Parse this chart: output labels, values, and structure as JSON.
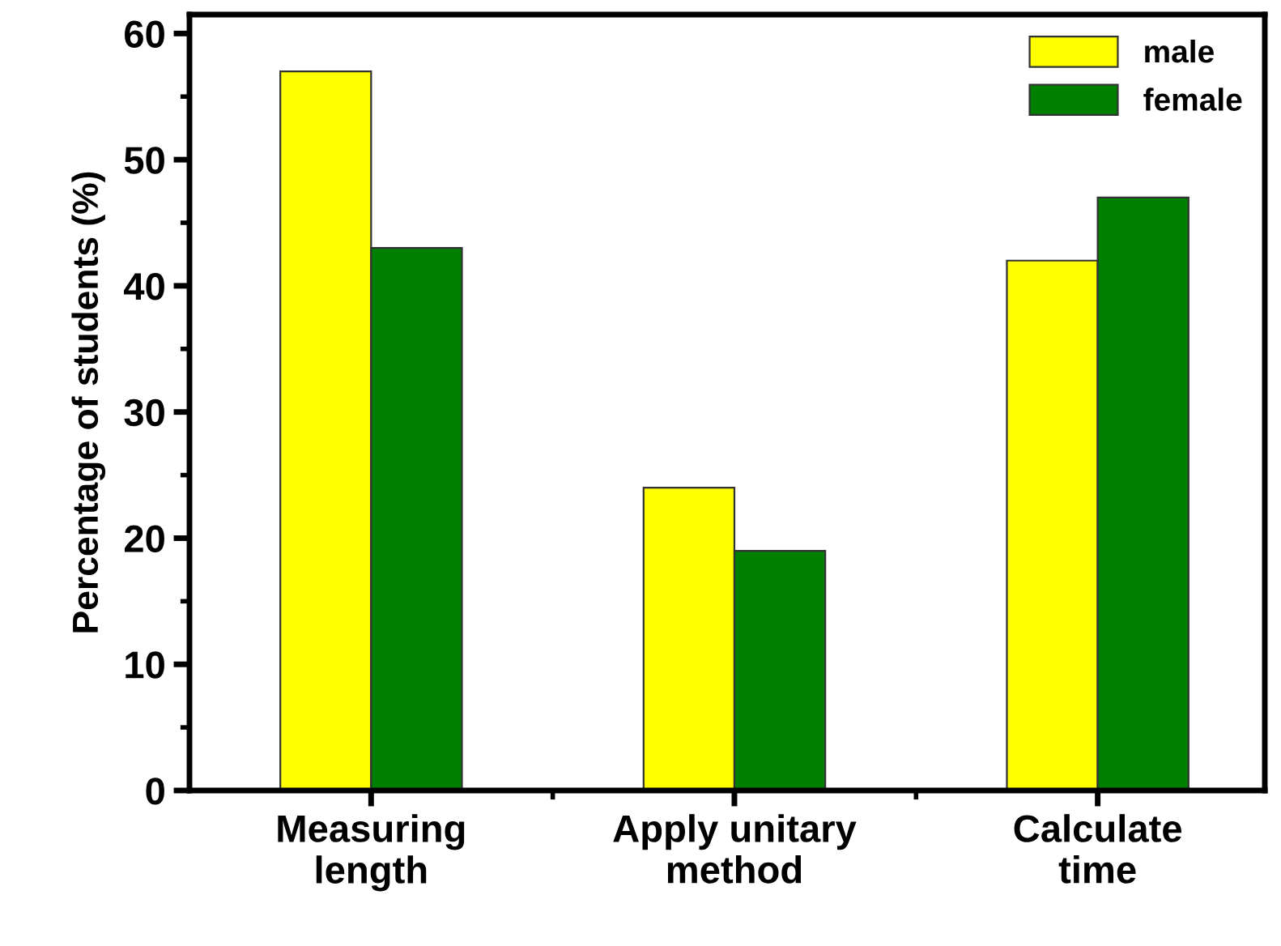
{
  "chart_data": {
    "type": "bar",
    "ylabel": "Percentage of students (%)",
    "categories": [
      "Measuring\nlength",
      "Apply unitary\nmethod",
      "Calculate\ntime"
    ],
    "series": [
      {
        "name": "male",
        "color": "#ffff00",
        "values": [
          57,
          24,
          42
        ]
      },
      {
        "name": "female",
        "color": "#008000",
        "values": [
          43,
          19,
          47
        ]
      }
    ],
    "ylim": [
      0,
      61.5
    ],
    "yticks": [
      0,
      10,
      20,
      30,
      40,
      50,
      60
    ],
    "grid": false,
    "legend": "top right"
  }
}
